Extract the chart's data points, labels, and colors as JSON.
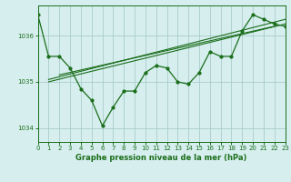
{
  "bg_color": "#d6eeee",
  "grid_color": "#aacccc",
  "line_color": "#1a6e1a",
  "xlabel": "Graphe pression niveau de la mer (hPa)",
  "xlim": [
    0,
    23
  ],
  "ylim": [
    1033.7,
    1036.65
  ],
  "yticks": [
    1034,
    1035,
    1036
  ],
  "xticks": [
    0,
    1,
    2,
    3,
    4,
    5,
    6,
    7,
    8,
    9,
    10,
    11,
    12,
    13,
    14,
    15,
    16,
    17,
    18,
    19,
    20,
    21,
    22,
    23
  ],
  "main_data": {
    "x": [
      0,
      1,
      2,
      3,
      4,
      5,
      6,
      7,
      8,
      9,
      10,
      11,
      12,
      13,
      14,
      15,
      16,
      17,
      18,
      19,
      20,
      21,
      22,
      23
    ],
    "y": [
      1036.45,
      1035.55,
      1035.55,
      1035.3,
      1034.85,
      1034.6,
      1034.05,
      1034.45,
      1034.8,
      1034.8,
      1035.2,
      1035.35,
      1035.3,
      1035.0,
      1034.95,
      1035.2,
      1035.65,
      1035.55,
      1035.55,
      1036.1,
      1036.45,
      1036.35,
      1036.25,
      1036.2
    ]
  },
  "trend1": {
    "x": [
      1,
      23
    ],
    "y": [
      1035.0,
      1036.25
    ]
  },
  "trend2": {
    "x": [
      1,
      23
    ],
    "y": [
      1035.05,
      1036.35
    ]
  },
  "trend3": {
    "x": [
      2,
      22
    ],
    "y": [
      1035.15,
      1036.2
    ]
  }
}
